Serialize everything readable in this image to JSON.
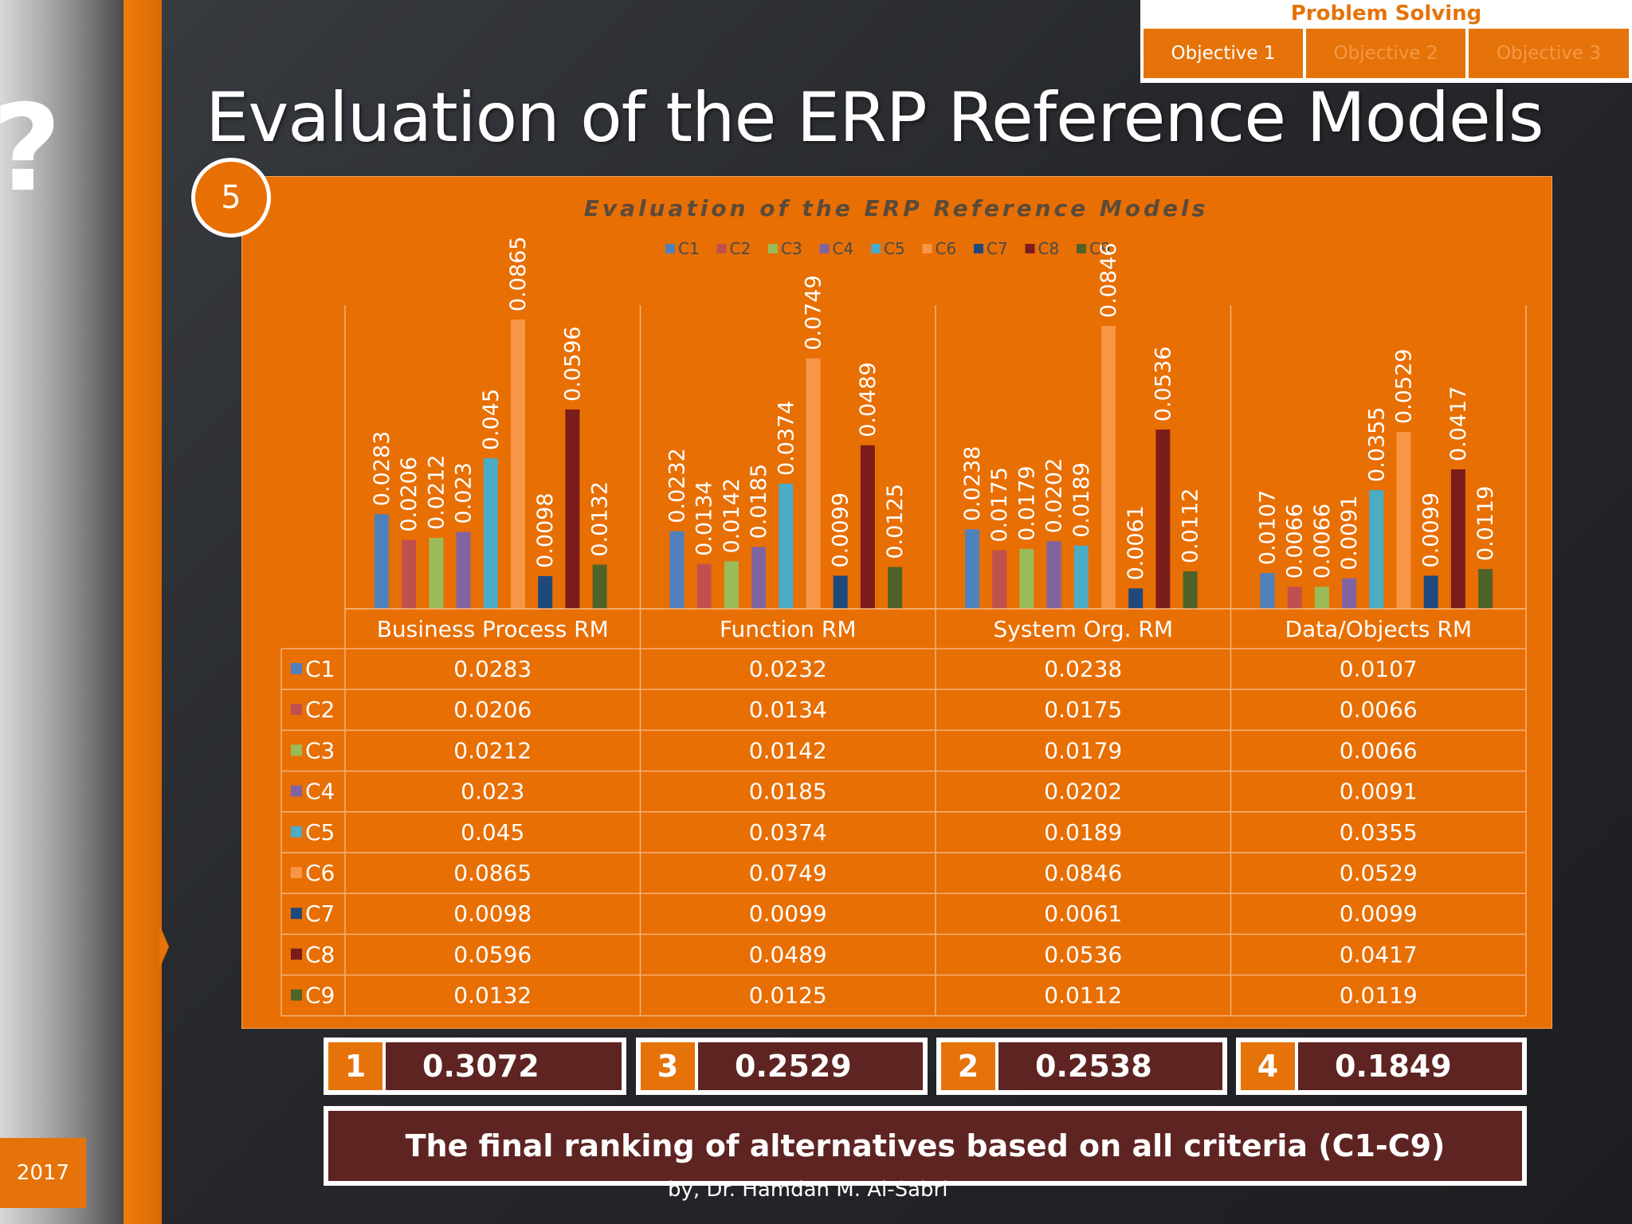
{
  "header": {
    "section": "Problem Solving",
    "objectives": [
      "Objective 1",
      "Objective 2",
      "Objective 3"
    ],
    "title": "Evaluation of the ERP Reference Models",
    "step": "5"
  },
  "colors": {
    "accent": "#e57309",
    "panel": "#e86f04",
    "dark_red": "#5e2422"
  },
  "chart_data": {
    "type": "bar",
    "title": "Evaluation of the ERP Reference Models",
    "categories": [
      "Business Process RM",
      "Function RM",
      "System Org. RM",
      "Data/Objects RM"
    ],
    "series": [
      {
        "name": "C1",
        "color": "#4f81bd",
        "values": [
          0.0283,
          0.0232,
          0.0238,
          0.0107
        ],
        "labels": [
          "0.0283",
          "0.0232",
          "0.0238",
          "0.0107"
        ]
      },
      {
        "name": "C2",
        "color": "#c0504d",
        "values": [
          0.0206,
          0.0134,
          0.0175,
          0.0066
        ],
        "labels": [
          "0.0206",
          "0.0134",
          "0.0175",
          "0.0066"
        ]
      },
      {
        "name": "C3",
        "color": "#9bbb59",
        "values": [
          0.0212,
          0.0142,
          0.0179,
          0.0066
        ],
        "labels": [
          "0.0212",
          "0.0142",
          "0.0179",
          "0.0066"
        ]
      },
      {
        "name": "C4",
        "color": "#8064a2",
        "values": [
          0.023,
          0.0185,
          0.0202,
          0.0091
        ],
        "labels": [
          "0.023",
          "0.0185",
          "0.0202",
          "0.0091"
        ]
      },
      {
        "name": "C5",
        "color": "#4bacc6",
        "values": [
          0.045,
          0.0374,
          0.0189,
          0.0355
        ],
        "labels": [
          "0.045",
          "0.0374",
          "0.0189",
          "0.0355"
        ]
      },
      {
        "name": "C6",
        "color": "#f79646",
        "values": [
          0.0865,
          0.0749,
          0.0846,
          0.0529
        ],
        "labels": [
          "0.0865",
          "0.0749",
          "0.0846",
          "0.0529"
        ]
      },
      {
        "name": "C7",
        "color": "#1f497d",
        "values": [
          0.0098,
          0.0099,
          0.0061,
          0.0099
        ],
        "labels": [
          "0.0098",
          "0.0099",
          "0.0061",
          "0.0099"
        ]
      },
      {
        "name": "C8",
        "color": "#7b1c1c",
        "values": [
          0.0596,
          0.0489,
          0.0536,
          0.0417
        ],
        "labels": [
          "0.0596",
          "0.0489",
          "0.0536",
          "0.0417"
        ]
      },
      {
        "name": "C9",
        "color": "#4f6228",
        "values": [
          0.0132,
          0.0125,
          0.0112,
          0.0119
        ],
        "labels": [
          "0.0132",
          "0.0125",
          "0.0112",
          "0.0119"
        ]
      }
    ],
    "ylim": [
      0,
      0.1
    ],
    "legend": "top",
    "data_table": true
  },
  "ranking": [
    {
      "rank": "1",
      "value": "0.3072"
    },
    {
      "rank": "3",
      "value": "0.2529"
    },
    {
      "rank": "2",
      "value": "0.2538"
    },
    {
      "rank": "4",
      "value": "0.1849"
    }
  ],
  "final_note": "The final ranking of alternatives based on all criteria (C1-C9)",
  "author": "by, Dr. Hamdan M. Al-Sabri",
  "year": "2017"
}
